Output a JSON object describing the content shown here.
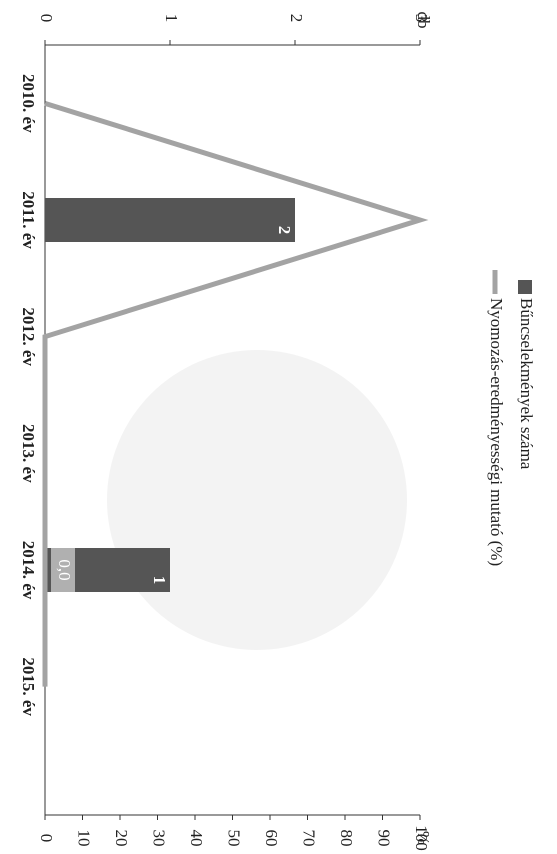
{
  "chart_data": {
    "type": "combo",
    "y_title": "db",
    "y2_title": "%",
    "categories": [
      "2010. év",
      "2011. év",
      "2012. év",
      "2013. év",
      "2014. év",
      "2015. év"
    ],
    "series": [
      {
        "name": "Bűncselekmények száma",
        "type": "bar",
        "color": "#555555",
        "values": [
          0,
          2,
          0,
          0,
          1,
          0
        ],
        "value_labels": [
          null,
          "2",
          null,
          null,
          "1",
          null
        ]
      },
      {
        "name": "Nyomozás-eredményességi mutató (%)",
        "type": "line",
        "axis": "y2",
        "color": "#a3a3a3",
        "values": [
          0,
          100,
          0,
          0,
          0,
          0
        ],
        "value_labels": [
          null,
          null,
          null,
          null,
          "0,0",
          null
        ]
      }
    ],
    "ylim": [
      0,
      3
    ],
    "yticks": [
      0,
      1,
      2,
      3
    ],
    "y2lim": [
      0,
      100
    ],
    "y2ticks": [
      0,
      10,
      20,
      30,
      40,
      50,
      60,
      70,
      80,
      90,
      100
    ],
    "legend": "top"
  }
}
